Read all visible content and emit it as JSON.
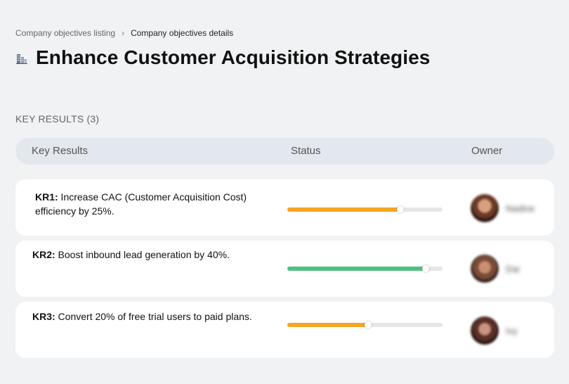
{
  "breadcrumb": {
    "parent": "Company objectives listing",
    "separator": "›",
    "current": "Company objectives details"
  },
  "page": {
    "icon": "office-building-icon",
    "title": "Enhance Customer Acquisition Strategies"
  },
  "key_results": {
    "section_title": "KEY RESULTS (3)",
    "columns": {
      "key_results": "Key Results",
      "status": "Status",
      "owner": "Owner"
    },
    "items": [
      {
        "id": "KR1:",
        "text": " Increase CAC (Customer Acquisition Cost) efficiency by 25%.",
        "progress": 0.73,
        "status_color": "#f5a623",
        "owner": "Nadine"
      },
      {
        "id": "KR2:",
        "text": " Boost inbound lead generation by 40%.",
        "progress": 0.89,
        "status_color": "#4fc080",
        "owner": "Dai"
      },
      {
        "id": "KR3:",
        "text": " Convert 20% of free trial users to paid plans.",
        "progress": 0.52,
        "status_color": "#f5a623",
        "owner": "Ivy"
      }
    ]
  },
  "colors": {
    "background": "#f1f2f4",
    "header_bg": "#e3e7ee",
    "row_bg": "#ffffff",
    "track": "#e6e6e6"
  }
}
